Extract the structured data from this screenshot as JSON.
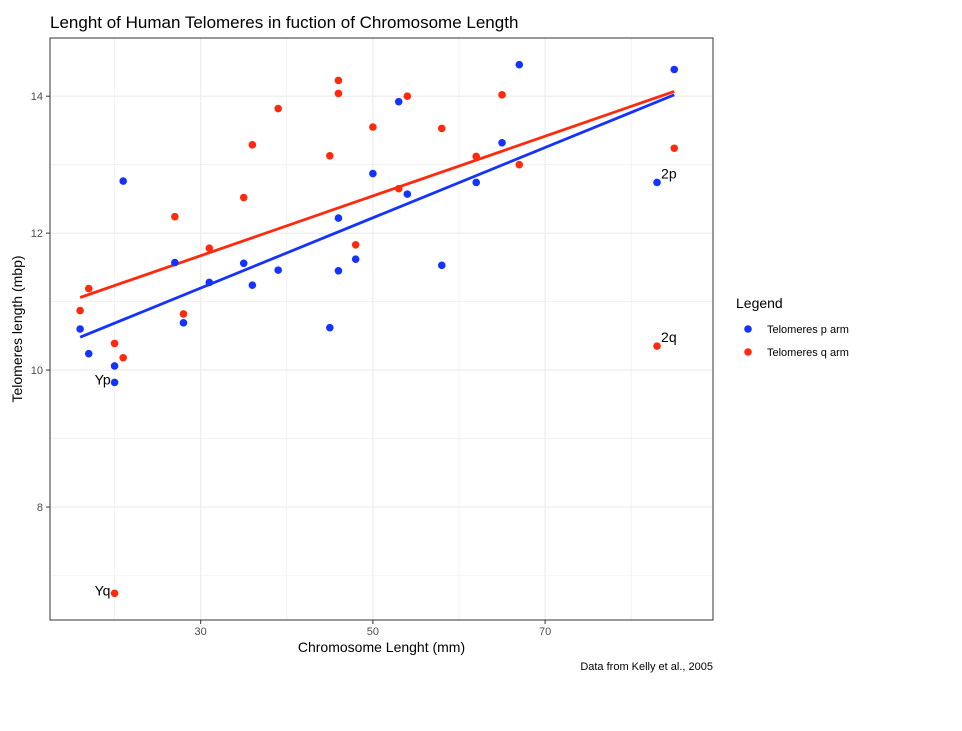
{
  "chart_data": {
    "type": "scatter",
    "title": "Lenght of Human Telomeres in fuction of Chromosome Length",
    "xlabel": "Chromosome Lenght (mm)",
    "ylabel": "Telomeres length (mbp)",
    "caption": "Data from Kelly et al., 2005",
    "xlim": [
      12.5,
      89.5
    ],
    "ylim": [
      6.35,
      14.85
    ],
    "x_ticks": [
      30,
      50,
      70
    ],
    "y_ticks": [
      8,
      10,
      12,
      14
    ],
    "grid": true,
    "legend": {
      "title": "Legend",
      "position": "right",
      "entries": [
        "Telomeres p arm",
        "Telomeres q arm"
      ]
    },
    "series": [
      {
        "name": "Telomeres p arm",
        "color": "#1533ff",
        "x": [
          16,
          17,
          20,
          20,
          21,
          27,
          28,
          31,
          35,
          36,
          39,
          45,
          46,
          46,
          48,
          50,
          53,
          54,
          58,
          62,
          65,
          67,
          83,
          85
        ],
        "y": [
          10.6,
          10.24,
          10.06,
          9.82,
          12.76,
          11.57,
          10.69,
          11.28,
          11.56,
          11.24,
          11.46,
          10.62,
          12.22,
          11.45,
          11.62,
          12.87,
          13.92,
          12.57,
          11.53,
          12.74,
          13.32,
          14.46,
          12.74,
          14.39
        ],
        "trend": {
          "x": [
            16,
            85
          ],
          "y": [
            10.48,
            14.02
          ]
        }
      },
      {
        "name": "Telomeres q arm",
        "color": "#ff2a0e",
        "x": [
          16,
          17,
          20,
          20,
          21,
          27,
          28,
          31,
          35,
          36,
          39,
          45,
          46,
          46,
          48,
          50,
          53,
          54,
          58,
          62,
          65,
          67,
          83,
          85
        ],
        "y": [
          10.87,
          11.19,
          10.39,
          6.74,
          10.18,
          12.24,
          10.82,
          11.78,
          12.52,
          13.29,
          13.82,
          13.13,
          14.23,
          14.04,
          11.83,
          13.55,
          12.65,
          14.0,
          13.53,
          13.12,
          14.02,
          13.0,
          10.35,
          13.24
        ],
        "trend": {
          "x": [
            16,
            85
          ],
          "y": [
            11.06,
            14.07
          ]
        }
      }
    ],
    "annotations": [
      {
        "text": "2p",
        "x": 83,
        "y": 12.74
      },
      {
        "text": "2q",
        "x": 83,
        "y": 10.35
      },
      {
        "text": "Yp",
        "x": 20,
        "y": 9.82
      },
      {
        "text": "Yq",
        "x": 20,
        "y": 6.74
      }
    ]
  }
}
